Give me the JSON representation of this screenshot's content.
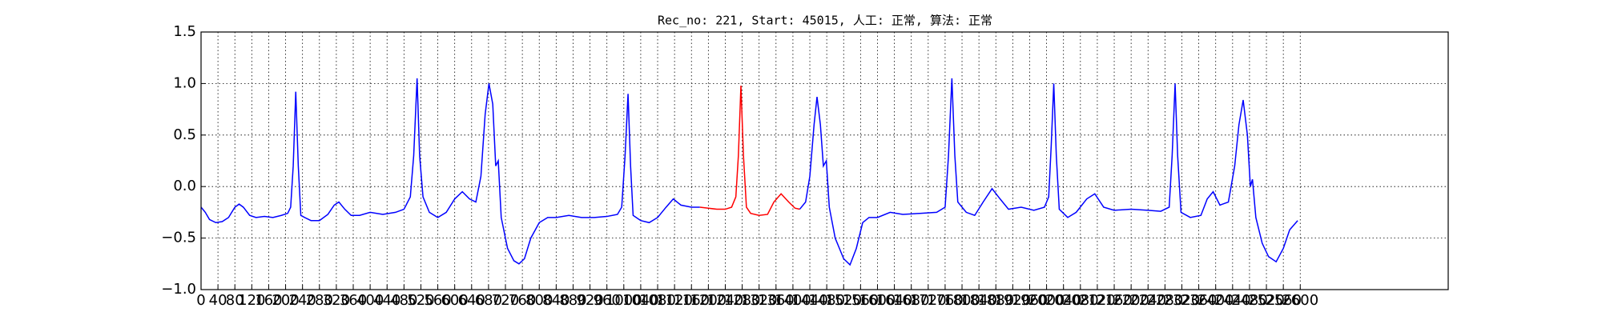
{
  "chart_data": {
    "type": "line",
    "title": "Rec_no: 221, Start: 45015, 人工: 正常, 算法: 正常",
    "grid": true,
    "xlim": [
      0,
      2950
    ],
    "ylim": [
      -1.0,
      1.5
    ],
    "yticks": [
      {
        "value": -1.0,
        "label": "−1.0"
      },
      {
        "value": -0.5,
        "label": "−0.5"
      },
      {
        "value": 0,
        "label": "0.0"
      },
      {
        "value": 0.5,
        "label": "0.5"
      },
      {
        "value": 1.0,
        "label": "1.0"
      },
      {
        "value": 1.5,
        "label": "1.5"
      }
    ],
    "xticks": [
      0,
      40,
      80,
      120,
      160,
      200,
      240,
      280,
      320,
      360,
      400,
      440,
      480,
      520,
      560,
      600,
      640,
      680,
      720,
      760,
      800,
      840,
      880,
      920,
      960,
      1000,
      1040,
      1080,
      1120,
      1160,
      1200,
      1240,
      1280,
      1320,
      1360,
      1400,
      1440,
      1480,
      1520,
      1560,
      1600,
      1640,
      1680,
      1720,
      1760,
      1800,
      1840,
      1880,
      1920,
      1960,
      2000,
      2040,
      2080,
      2120,
      2160,
      2200,
      2240,
      2280,
      2320,
      2360,
      2400,
      2440,
      2480,
      2520,
      2560,
      2600
    ],
    "series": [
      {
        "color": "#0000ff",
        "x": [
          0,
          10,
          20,
          35,
          50,
          65,
          80,
          90,
          100,
          115,
          130,
          150,
          170,
          190,
          205,
          212,
          218,
          224,
          230,
          236,
          245,
          260,
          280,
          300,
          315,
          326,
          340,
          355,
          375,
          400,
          430,
          460,
          480,
          495,
          503,
          511,
          517,
          525,
          540,
          560,
          580,
          600,
          618,
          635,
          650,
          662,
          672,
          681,
          690,
          697,
          703,
          710,
          725,
          740,
          752,
          765,
          780,
          800,
          820,
          840,
          870,
          900,
          930,
          960,
          985,
          995,
          1003,
          1010,
          1016,
          1022,
          1040,
          1060,
          1080,
          1100,
          1117,
          1135,
          1160,
          1180,
          1300,
          1416,
          1430,
          1440,
          1450,
          1457,
          1465,
          1472,
          1479,
          1486,
          1500,
          1520,
          1535,
          1550,
          1565,
          1580,
          1600,
          1630,
          1660,
          1700,
          1740,
          1760,
          1768,
          1776,
          1783,
          1790,
          1810,
          1830,
          1850,
          1871,
          1890,
          1910,
          1940,
          1970,
          1995,
          2005,
          2011,
          2017,
          2023,
          2030,
          2050,
          2070,
          2095,
          2114,
          2135,
          2160,
          2200,
          2240,
          2270,
          2290,
          2297,
          2304,
          2310,
          2318,
          2340,
          2365,
          2380,
          2394,
          2410,
          2430,
          2445,
          2455,
          2465,
          2475,
          2482,
          2487,
          2495,
          2510,
          2525,
          2543,
          2560,
          2575,
          2594
        ],
        "values": [
          -0.2,
          -0.25,
          -0.32,
          -0.35,
          -0.34,
          -0.3,
          -0.2,
          -0.17,
          -0.2,
          -0.28,
          -0.3,
          -0.29,
          -0.3,
          -0.28,
          -0.26,
          -0.2,
          0.2,
          0.92,
          0.2,
          -0.28,
          -0.3,
          -0.33,
          -0.33,
          -0.27,
          -0.18,
          -0.15,
          -0.22,
          -0.28,
          -0.28,
          -0.25,
          -0.27,
          -0.25,
          -0.22,
          -0.1,
          0.3,
          1.05,
          0.3,
          -0.1,
          -0.25,
          -0.3,
          -0.25,
          -0.12,
          -0.05,
          -0.12,
          -0.15,
          0.1,
          0.7,
          1.0,
          0.8,
          0.2,
          0.25,
          -0.3,
          -0.6,
          -0.72,
          -0.75,
          -0.7,
          -0.5,
          -0.35,
          -0.3,
          -0.3,
          -0.28,
          -0.3,
          -0.3,
          -0.29,
          -0.27,
          -0.2,
          0.3,
          0.9,
          0.2,
          -0.28,
          -0.33,
          -0.35,
          -0.3,
          -0.2,
          -0.12,
          -0.18,
          -0.2,
          -0.2,
          null,
          -0.22,
          -0.15,
          0.1,
          0.6,
          0.87,
          0.6,
          0.2,
          0.25,
          -0.2,
          -0.5,
          -0.7,
          -0.76,
          -0.6,
          -0.35,
          -0.3,
          -0.3,
          -0.25,
          -0.27,
          -0.26,
          -0.25,
          -0.2,
          0.3,
          1.05,
          0.3,
          -0.15,
          -0.25,
          -0.28,
          -0.15,
          -0.02,
          -0.12,
          -0.22,
          -0.2,
          -0.23,
          -0.2,
          -0.1,
          0.4,
          1.0,
          0.3,
          -0.22,
          -0.3,
          -0.25,
          -0.12,
          -0.07,
          -0.2,
          -0.23,
          -0.22,
          -0.23,
          -0.24,
          -0.2,
          0.3,
          1.0,
          0.3,
          -0.25,
          -0.3,
          -0.28,
          -0.12,
          -0.05,
          -0.18,
          -0.15,
          0.2,
          0.6,
          0.84,
          0.5,
          0.0,
          0.07,
          -0.3,
          -0.55,
          -0.68,
          -0.73,
          -0.6,
          -0.42,
          -0.33
        ]
      },
      {
        "color": "#ff0000",
        "x": [
          1180,
          1200,
          1220,
          1240,
          1255,
          1265,
          1271,
          1277,
          1283,
          1290,
          1300,
          1320,
          1340,
          1355,
          1372,
          1390,
          1405,
          1416
        ],
        "values": [
          -0.2,
          -0.21,
          -0.22,
          -0.22,
          -0.2,
          -0.1,
          0.3,
          0.98,
          0.3,
          -0.2,
          -0.26,
          -0.28,
          -0.27,
          -0.15,
          -0.07,
          -0.15,
          -0.21,
          -0.22
        ]
      }
    ]
  }
}
